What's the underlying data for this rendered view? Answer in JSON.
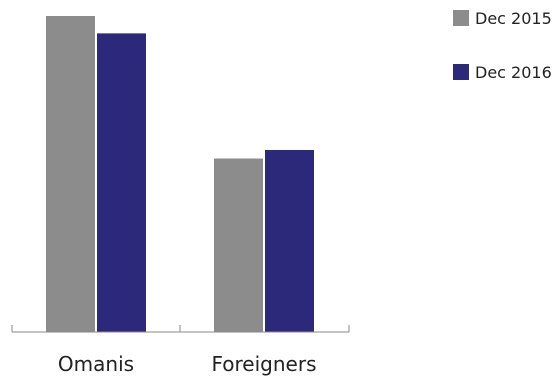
{
  "chart_data": {
    "type": "bar",
    "title": "",
    "xlabel": "",
    "ylabel": "",
    "categories": [
      "Omanis",
      "Foreigners"
    ],
    "series": [
      {
        "name": "Dec 2015",
        "color": "#8c8c8c",
        "values": [
          100,
          54.9
        ]
      },
      {
        "name": "Dec 2016",
        "color": "#2c287a",
        "values": [
          94.5,
          57.6
        ]
      }
    ],
    "ylim": [
      0,
      100
    ],
    "grid": false,
    "y_axis_visible": false,
    "legend": "top-right"
  }
}
